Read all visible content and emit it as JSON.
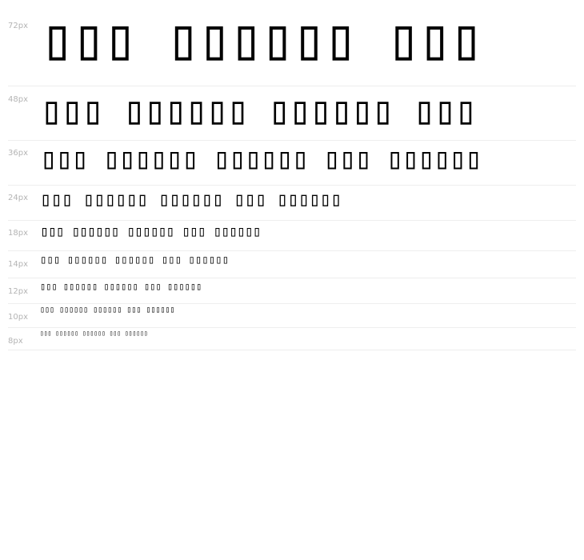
{
  "rows": [
    {
      "size_label": "72px",
      "sample": "▯▯▯ ▯▯▯▯▯▯ ▯▯▯"
    },
    {
      "size_label": "48px",
      "sample": "▯▯▯ ▯▯▯▯▯▯ ▯▯▯▯▯▯ ▯▯▯"
    },
    {
      "size_label": "36px",
      "sample": "▯▯▯ ▯▯▯▯▯▯ ▯▯▯▯▯▯ ▯▯▯ ▯▯▯▯▯▯"
    },
    {
      "size_label": "24px",
      "sample": "▯▯▯ ▯▯▯▯▯▯ ▯▯▯▯▯▯ ▯▯▯ ▯▯▯▯▯▯"
    },
    {
      "size_label": "18px",
      "sample": "▯▯▯ ▯▯▯▯▯▯ ▯▯▯▯▯▯ ▯▯▯ ▯▯▯▯▯▯"
    },
    {
      "size_label": "14px",
      "sample": "▯▯▯ ▯▯▯▯▯▯ ▯▯▯▯▯▯ ▯▯▯ ▯▯▯▯▯▯"
    },
    {
      "size_label": "12px",
      "sample": "▯▯▯ ▯▯▯▯▯▯ ▯▯▯▯▯▯ ▯▯▯ ▯▯▯▯▯▯"
    },
    {
      "size_label": "10px",
      "sample": "▯▯▯ ▯▯▯▯▯▯ ▯▯▯▯▯▯ ▯▯▯ ▯▯▯▯▯▯"
    },
    {
      "size_label": "8px",
      "sample": "▯▯▯ ▯▯▯▯▯▯ ▯▯▯▯▯▯ ▯▯▯ ▯▯▯▯▯▯"
    }
  ]
}
